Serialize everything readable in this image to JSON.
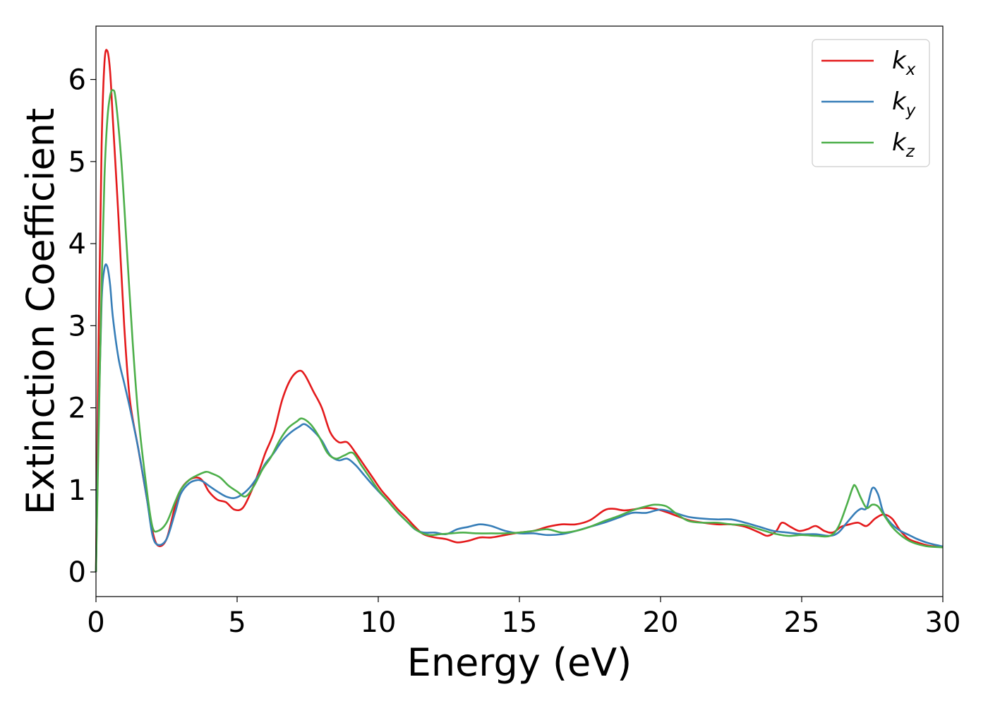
{
  "chart_data": {
    "type": "line",
    "title": "",
    "xlabel": "Energy (eV)",
    "ylabel": "Extinction Coefficient",
    "xlim": [
      0,
      30
    ],
    "ylim": [
      -0.3,
      6.65
    ],
    "xticks": [
      0,
      5,
      10,
      15,
      20,
      25,
      30
    ],
    "yticks": [
      0,
      1,
      2,
      3,
      4,
      5,
      6
    ],
    "grid": false,
    "legend_position": "top-right",
    "series": [
      {
        "name": "k",
        "subscript": "x",
        "color": "#e41a1c",
        "x": [
          0,
          0.1,
          0.2,
          0.3,
          0.4,
          0.5,
          0.6,
          0.8,
          1.0,
          1.2,
          1.5,
          1.8,
          2.0,
          2.2,
          2.5,
          2.8,
          3.0,
          3.3,
          3.6,
          3.8,
          4.0,
          4.3,
          4.6,
          4.9,
          5.2,
          5.5,
          5.8,
          6.0,
          6.3,
          6.6,
          6.9,
          7.2,
          7.4,
          7.7,
          8.0,
          8.3,
          8.6,
          8.9,
          9.2,
          9.5,
          9.8,
          10.1,
          10.4,
          10.7,
          11.0,
          11.3,
          11.6,
          12.0,
          12.4,
          12.8,
          13.2,
          13.6,
          14.0,
          14.5,
          15.0,
          15.5,
          16.0,
          16.5,
          17.0,
          17.5,
          18.0,
          18.3,
          18.7,
          19.0,
          19.4,
          19.8,
          20.2,
          20.6,
          21.0,
          21.5,
          22.0,
          22.5,
          23.0,
          23.5,
          23.8,
          24.1,
          24.3,
          24.6,
          24.9,
          25.2,
          25.5,
          25.8,
          26.1,
          26.4,
          26.7,
          27.0,
          27.3,
          27.6,
          27.9,
          28.2,
          28.5,
          28.8,
          29.1,
          29.5,
          30.0
        ],
        "values": [
          0.0,
          3.0,
          5.2,
          6.2,
          6.35,
          6.1,
          5.5,
          4.3,
          3.0,
          2.1,
          1.5,
          0.9,
          0.5,
          0.32,
          0.4,
          0.8,
          1.0,
          1.12,
          1.15,
          1.1,
          0.98,
          0.88,
          0.85,
          0.76,
          0.78,
          0.98,
          1.25,
          1.45,
          1.7,
          2.1,
          2.35,
          2.45,
          2.4,
          2.2,
          2.0,
          1.7,
          1.58,
          1.58,
          1.45,
          1.3,
          1.15,
          1.0,
          0.88,
          0.76,
          0.66,
          0.55,
          0.46,
          0.42,
          0.4,
          0.36,
          0.38,
          0.42,
          0.42,
          0.45,
          0.48,
          0.5,
          0.55,
          0.58,
          0.58,
          0.63,
          0.75,
          0.77,
          0.75,
          0.76,
          0.78,
          0.77,
          0.73,
          0.68,
          0.63,
          0.6,
          0.58,
          0.58,
          0.55,
          0.48,
          0.44,
          0.5,
          0.6,
          0.55,
          0.5,
          0.52,
          0.56,
          0.5,
          0.48,
          0.55,
          0.58,
          0.6,
          0.56,
          0.65,
          0.7,
          0.65,
          0.5,
          0.4,
          0.36,
          0.32,
          0.3
        ]
      },
      {
        "name": "k",
        "subscript": "y",
        "color": "#377eb8",
        "x": [
          0,
          0.1,
          0.2,
          0.3,
          0.4,
          0.5,
          0.6,
          0.8,
          1.0,
          1.2,
          1.5,
          1.8,
          2.0,
          2.2,
          2.5,
          2.8,
          3.0,
          3.3,
          3.6,
          3.8,
          4.0,
          4.3,
          4.6,
          4.9,
          5.2,
          5.5,
          5.8,
          6.0,
          6.3,
          6.6,
          6.9,
          7.2,
          7.4,
          7.7,
          8.0,
          8.3,
          8.6,
          8.9,
          9.2,
          9.5,
          9.8,
          10.1,
          10.4,
          10.7,
          11.0,
          11.3,
          11.6,
          12.0,
          12.4,
          12.8,
          13.2,
          13.6,
          14.0,
          14.5,
          15.0,
          15.5,
          16.0,
          16.5,
          17.0,
          17.5,
          18.0,
          18.5,
          19.0,
          19.5,
          20.0,
          20.5,
          21.0,
          21.5,
          22.0,
          22.5,
          23.0,
          23.5,
          24.0,
          24.5,
          25.0,
          25.5,
          26.0,
          26.3,
          26.6,
          26.9,
          27.1,
          27.3,
          27.5,
          27.7,
          27.9,
          28.2,
          28.5,
          28.8,
          29.1,
          29.5,
          30.0
        ],
        "values": [
          0.0,
          2.0,
          3.3,
          3.7,
          3.72,
          3.5,
          3.1,
          2.6,
          2.3,
          2.0,
          1.5,
          0.9,
          0.45,
          0.33,
          0.4,
          0.72,
          0.95,
          1.08,
          1.12,
          1.1,
          1.05,
          0.98,
          0.92,
          0.9,
          0.95,
          1.05,
          1.2,
          1.32,
          1.45,
          1.6,
          1.7,
          1.77,
          1.8,
          1.72,
          1.6,
          1.42,
          1.36,
          1.38,
          1.3,
          1.18,
          1.06,
          0.95,
          0.84,
          0.72,
          0.62,
          0.52,
          0.48,
          0.48,
          0.46,
          0.52,
          0.55,
          0.58,
          0.56,
          0.5,
          0.47,
          0.47,
          0.45,
          0.46,
          0.5,
          0.55,
          0.6,
          0.66,
          0.72,
          0.72,
          0.76,
          0.72,
          0.67,
          0.65,
          0.64,
          0.64,
          0.6,
          0.55,
          0.5,
          0.48,
          0.46,
          0.46,
          0.44,
          0.48,
          0.6,
          0.72,
          0.77,
          0.78,
          1.02,
          0.95,
          0.72,
          0.58,
          0.5,
          0.45,
          0.4,
          0.35,
          0.31
        ]
      },
      {
        "name": "k",
        "subscript": "z",
        "color": "#4daf4a",
        "x": [
          0,
          0.1,
          0.2,
          0.3,
          0.4,
          0.5,
          0.6,
          0.7,
          0.9,
          1.1,
          1.3,
          1.5,
          1.8,
          2.0,
          2.2,
          2.5,
          2.8,
          3.0,
          3.3,
          3.6,
          3.9,
          4.1,
          4.4,
          4.7,
          5.0,
          5.3,
          5.6,
          5.9,
          6.2,
          6.5,
          6.8,
          7.1,
          7.3,
          7.6,
          7.9,
          8.2,
          8.5,
          8.8,
          9.1,
          9.4,
          9.7,
          10.0,
          10.3,
          10.6,
          11.0,
          11.4,
          11.8,
          12.2,
          12.6,
          13.0,
          13.5,
          14.0,
          14.5,
          15.0,
          15.5,
          16.0,
          16.5,
          17.0,
          17.5,
          18.0,
          18.5,
          19.0,
          19.5,
          19.8,
          20.2,
          20.6,
          21.0,
          21.5,
          22.0,
          22.5,
          23.0,
          23.5,
          24.0,
          24.5,
          25.0,
          25.5,
          26.0,
          26.3,
          26.6,
          26.8,
          26.9,
          27.1,
          27.3,
          27.5,
          27.7,
          27.9,
          28.2,
          28.5,
          28.8,
          29.1,
          29.5,
          30.0
        ],
        "values": [
          0.0,
          1.8,
          3.5,
          4.8,
          5.5,
          5.8,
          5.87,
          5.75,
          5.0,
          3.9,
          2.8,
          1.9,
          1.0,
          0.55,
          0.5,
          0.6,
          0.85,
          1.0,
          1.12,
          1.18,
          1.22,
          1.2,
          1.15,
          1.05,
          0.98,
          0.92,
          1.05,
          1.25,
          1.4,
          1.6,
          1.75,
          1.83,
          1.87,
          1.8,
          1.65,
          1.45,
          1.38,
          1.42,
          1.45,
          1.3,
          1.15,
          1.0,
          0.88,
          0.76,
          0.62,
          0.5,
          0.45,
          0.46,
          0.47,
          0.48,
          0.47,
          0.47,
          0.47,
          0.48,
          0.5,
          0.52,
          0.48,
          0.5,
          0.55,
          0.62,
          0.68,
          0.75,
          0.8,
          0.82,
          0.8,
          0.7,
          0.62,
          0.6,
          0.6,
          0.58,
          0.57,
          0.52,
          0.47,
          0.44,
          0.45,
          0.44,
          0.44,
          0.55,
          0.82,
          1.02,
          1.05,
          0.9,
          0.78,
          0.82,
          0.8,
          0.7,
          0.55,
          0.45,
          0.38,
          0.34,
          0.31,
          0.3
        ]
      }
    ]
  }
}
